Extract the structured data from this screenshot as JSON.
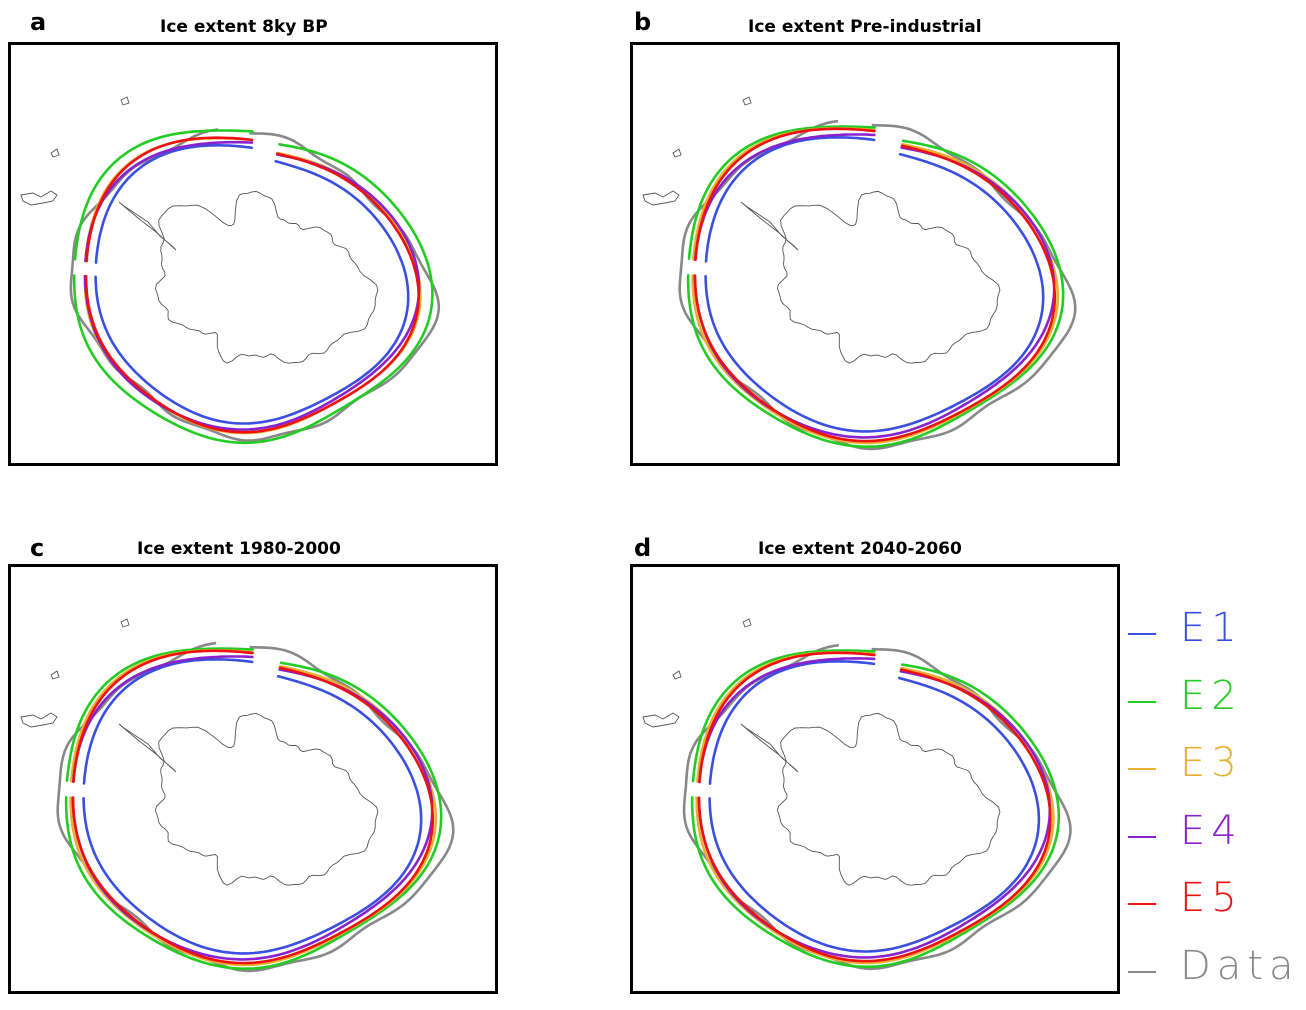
{
  "panels": [
    {
      "letter": "a",
      "title": "Ice extent 8ky BP"
    },
    {
      "letter": "b",
      "title": "Ice extent Pre-industrial"
    },
    {
      "letter": "c",
      "title": "Ice extent 1980-2000"
    },
    {
      "letter": "d",
      "title": "Ice extent 2040-2060"
    }
  ],
  "legend": [
    {
      "label": "E1",
      "color": "#3a4fe0"
    },
    {
      "label": "E2",
      "color": "#22cc22"
    },
    {
      "label": "E3",
      "color": "#e8b030"
    },
    {
      "label": "E4",
      "color": "#8822cc"
    },
    {
      "label": "E5",
      "color": "#ee1111"
    },
    {
      "label": "Data",
      "color": "#888888"
    }
  ],
  "colors": {
    "coast": "#555555",
    "frame": "#000000"
  }
}
